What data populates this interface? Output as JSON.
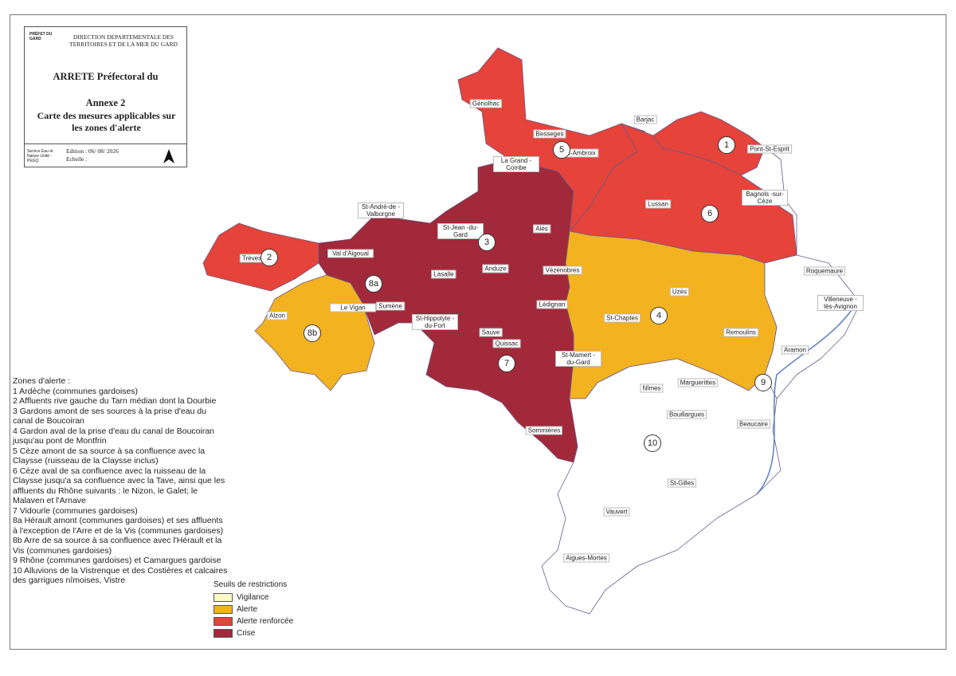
{
  "header": {
    "logo": "PRÉFET DU GARD",
    "direction": "DIRECTION DEPARTEMENTALE DES TERRITOIRES ET DE LA MER DU GARD",
    "title": "ARRETE Préfectoral du",
    "annex": "Annexe 2",
    "subtitle": "Carte des mesures applicables sur les zones d'alerte",
    "service": "Service Eau et Nature Unité : PEGQ",
    "edition": "Edition : 06/ 08/ 2026",
    "scale": "Echelle :"
  },
  "zones_legend": {
    "title": "Zones d'alerte :",
    "items": [
      "1 Ardèche (communes gardoises)",
      "2 Affluents rive gauche du Tarn médian dont la Dourbie",
      "3 Gardons amont de ses sources à la prise d'eau du canal de Boucoiran",
      "4 Gardon aval de la prise d'eau du canal de Boucoiran jusqu'au pont de Montfrin",
      "5 Cèze amont de sa source à sa confluence avec la Claysse (ruisseau de la Claysse inclus)",
      "6 Cèze aval de sa confluence avec la ruisseau de la Claysse jusqu'a sa confluence avec la Tave, ainsi que les affluents du Rhône suivants : le Nizon, le Galet; le Malaven et l'Arnave",
      "7 Vidourle (communes gardoises)",
      "8a Hérault amont (communes gardoises) et ses affluents à l'exception de l'Arre et de la Vis (communes gardoises)",
      "8b Arre de sa source à sa confluence avec l'Hérault et la Vis (communes gardoises)",
      "9 Rhône (communes gardoises) et Camargues gardoise",
      "10 Alluvions de la Vistrenque et des Costières et calcaires des garrigues nîmoises, Vistre"
    ]
  },
  "restrictions_legend": {
    "title": "Seuils de restrictions",
    "items": [
      {
        "label": "Vigilance",
        "color": "#fdf9c6"
      },
      {
        "label": "Alerte",
        "color": "#f3b21f"
      },
      {
        "label": "Alerte renforcée",
        "color": "#e6433a"
      },
      {
        "label": "Crise",
        "color": "#a2293a"
      }
    ]
  },
  "zone_numbers": [
    "1",
    "2",
    "3",
    "4",
    "5",
    "6",
    "7",
    "8a",
    "8b",
    "9",
    "10"
  ],
  "places": [
    "Génolhac",
    "Besseges",
    "St-Ambroix",
    "Barjac",
    "Pont-St-Esprit",
    "La Grand -Combe",
    "St-André-de -Valborgne",
    "Alès",
    "St-Jean -du-Gard",
    "Lussan",
    "Bagnols -sur-Cèze",
    "Trèves",
    "Val d'Aigoual",
    "Lasalle",
    "Anduze",
    "Vézénobres",
    "Roquemaure",
    "Le Vigan",
    "Alzon",
    "Sumène",
    "Lédignan",
    "Uzès",
    "Villeneuve -lès-Avignon",
    "St-Hippolyte -du-Fort",
    "St-Chaptes",
    "Remoulins",
    "Sauve",
    "Quissac",
    "Aramon",
    "St-Mamert -du-Gard",
    "Nîmes",
    "Marguerittes",
    "Bouillargues",
    "Beaucaire",
    "Sommières",
    "St-Gilles",
    "Vauvert",
    "Aigues-Mortes"
  ]
}
